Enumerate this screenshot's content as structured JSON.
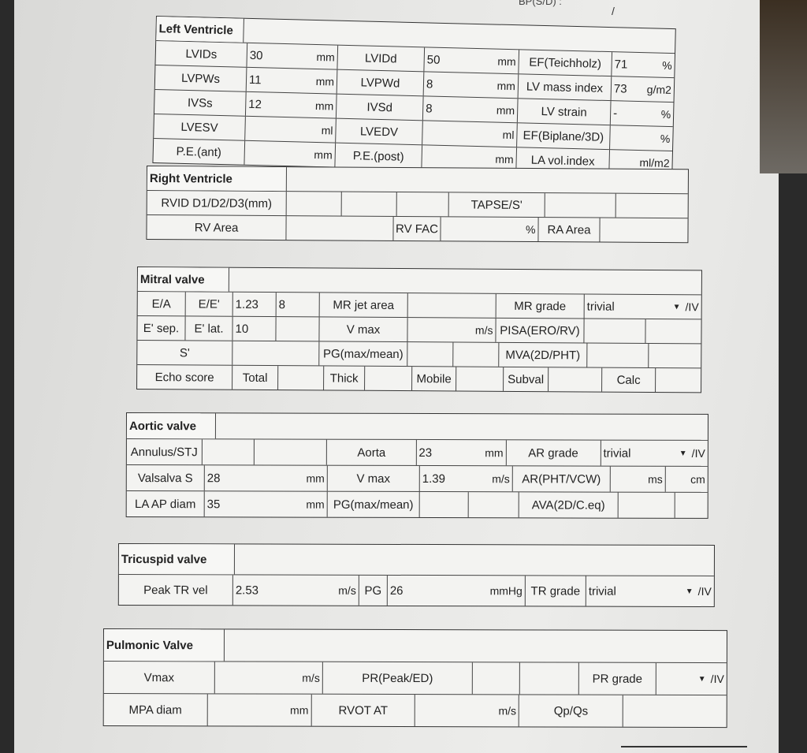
{
  "header": {
    "bp_label": "BP(S/D) :",
    "bp_sep": "/"
  },
  "sections": [
    {
      "name": "left-ventricle",
      "rows": [
        [
          {
            "t": "Left Ventricle",
            "title": true
          },
          {
            "t": ""
          }
        ],
        [
          {
            "t": "LVIDs"
          },
          {
            "t": "30",
            "u": "mm"
          },
          {
            "t": "LVIDd"
          },
          {
            "t": "50",
            "u": "mm"
          },
          {
            "t": "EF(Teichholz)"
          },
          {
            "t": "71",
            "u": "%"
          }
        ],
        [
          {
            "t": "LVPWs"
          },
          {
            "t": "11",
            "u": "mm"
          },
          {
            "t": "LVPWd"
          },
          {
            "t": "8",
            "u": "mm"
          },
          {
            "t": "LV mass index"
          },
          {
            "t": "73",
            "u": "g/m2"
          }
        ],
        [
          {
            "t": "IVSs"
          },
          {
            "t": "12",
            "u": "mm"
          },
          {
            "t": "IVSd"
          },
          {
            "t": "8",
            "u": "mm"
          },
          {
            "t": "LV strain"
          },
          {
            "t": "-",
            "u": "%"
          }
        ],
        [
          {
            "t": "LVESV"
          },
          {
            "t": "",
            "u": "ml"
          },
          {
            "t": "LVEDV"
          },
          {
            "t": "",
            "u": "ml"
          },
          {
            "t": "EF(Biplane/3D)"
          },
          {
            "t": "",
            "u": "%"
          }
        ],
        [
          {
            "t": "P.E.(ant)"
          },
          {
            "t": "",
            "u": "mm"
          },
          {
            "t": "P.E.(post)"
          },
          {
            "t": "",
            "u": "mm"
          },
          {
            "t": "LA vol.index"
          },
          {
            "t": "",
            "u": "ml/m2"
          }
        ]
      ]
    },
    {
      "name": "right-ventricle",
      "rows": [
        [
          {
            "t": "Right Ventricle",
            "title": true
          },
          {
            "t": ""
          }
        ],
        [
          {
            "t": "RVID D1/D2/D3(mm)"
          },
          {
            "t": ""
          },
          {
            "t": ""
          },
          {
            "t": ""
          },
          {
            "t": "TAPSE/S'"
          },
          {
            "t": ""
          },
          {
            "t": ""
          }
        ],
        [
          {
            "t": "RV Area"
          },
          {
            "t": ""
          },
          {
            "t": "RV FAC"
          },
          {
            "t": "",
            "u": "%"
          },
          {
            "t": "RA Area"
          },
          {
            "t": ""
          }
        ]
      ]
    },
    {
      "name": "mitral-valve",
      "rows": [
        [
          {
            "t": "Mitral valve",
            "title": true
          },
          {
            "t": ""
          }
        ],
        [
          {
            "t": "E/A"
          },
          {
            "t": "E/E'"
          },
          {
            "t": "1.23",
            "u": ""
          },
          {
            "t": "8",
            "u": ""
          },
          {
            "t": "MR jet area"
          },
          {
            "t": ""
          },
          {
            "t": "MR grade"
          },
          {
            "t": "trivial",
            "dd": true,
            "u": "/IV"
          }
        ],
        [
          {
            "t": "E' sep."
          },
          {
            "t": "E' lat."
          },
          {
            "t": "10",
            "u": ""
          },
          {
            "t": ""
          },
          {
            "t": "V max"
          },
          {
            "t": "",
            "u": "m/s"
          },
          {
            "t": "PISA(ERO/RV)"
          },
          {
            "t": ""
          },
          {
            "t": ""
          }
        ],
        [
          {
            "t": "S'"
          },
          {
            "t": ""
          },
          {
            "t": "PG(max/mean)"
          },
          {
            "t": ""
          },
          {
            "t": ""
          },
          {
            "t": "MVA(2D/PHT)"
          },
          {
            "t": ""
          },
          {
            "t": ""
          }
        ],
        [
          {
            "t": "Echo score"
          },
          {
            "t": "Total"
          },
          {
            "t": ""
          },
          {
            "t": "Thick"
          },
          {
            "t": ""
          },
          {
            "t": "Mobile"
          },
          {
            "t": ""
          },
          {
            "t": "Subval"
          },
          {
            "t": ""
          },
          {
            "t": "Calc"
          },
          {
            "t": ""
          }
        ]
      ]
    },
    {
      "name": "aortic-valve",
      "rows": [
        [
          {
            "t": "Aortic valve",
            "title": true
          },
          {
            "t": ""
          }
        ],
        [
          {
            "t": "Annulus/STJ"
          },
          {
            "t": ""
          },
          {
            "t": ""
          },
          {
            "t": "Aorta"
          },
          {
            "t": "23",
            "u": "mm"
          },
          {
            "t": "AR grade"
          },
          {
            "t": "trivial",
            "dd": true,
            "u": "/IV"
          }
        ],
        [
          {
            "t": "Valsalva S"
          },
          {
            "t": "28",
            "u": "mm"
          },
          {
            "t": "V max"
          },
          {
            "t": "1.39",
            "u": "m/s"
          },
          {
            "t": "AR(PHT/VCW)"
          },
          {
            "t": "",
            "u": "ms"
          },
          {
            "t": "",
            "u": "cm"
          }
        ],
        [
          {
            "t": "LA AP diam"
          },
          {
            "t": "35",
            "u": "mm"
          },
          {
            "t": "PG(max/mean)"
          },
          {
            "t": ""
          },
          {
            "t": ""
          },
          {
            "t": "AVA(2D/C.eq)"
          },
          {
            "t": ""
          },
          {
            "t": ""
          }
        ]
      ]
    },
    {
      "name": "tricuspid-valve",
      "rows": [
        [
          {
            "t": "Tricuspid valve",
            "title": true
          },
          {
            "t": ""
          }
        ],
        [
          {
            "t": "Peak TR vel"
          },
          {
            "t": "2.53",
            "u": "m/s"
          },
          {
            "t": "PG"
          },
          {
            "t": "26",
            "u": "mmHg"
          },
          {
            "t": "TR grade"
          },
          {
            "t": "trivial",
            "dd": true,
            "u": "/IV"
          }
        ]
      ]
    },
    {
      "name": "pulmonic-valve",
      "rows": [
        [
          {
            "t": "Pulmonic Valve",
            "title": true
          },
          {
            "t": ""
          }
        ],
        [
          {
            "t": "Vmax"
          },
          {
            "t": "",
            "u": "m/s"
          },
          {
            "t": "PR(Peak/ED)"
          },
          {
            "t": ""
          },
          {
            "t": ""
          },
          {
            "t": "PR grade"
          },
          {
            "t": "",
            "dd": true,
            "u": "/IV"
          }
        ],
        [
          {
            "t": "MPA diam"
          },
          {
            "t": "",
            "u": "mm"
          },
          {
            "t": "RVOT AT"
          },
          {
            "t": "",
            "u": "m/s"
          },
          {
            "t": "Qp/Qs"
          },
          {
            "t": ""
          }
        ]
      ]
    }
  ]
}
